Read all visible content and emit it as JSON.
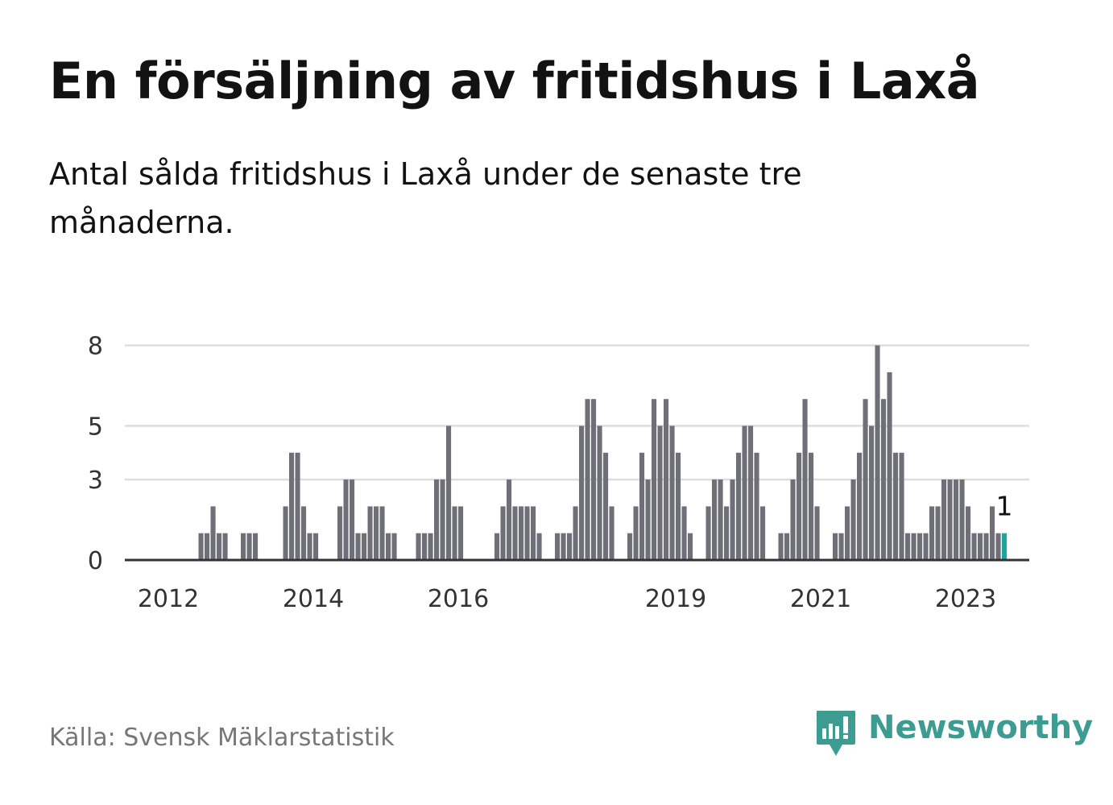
{
  "title": "En försäljning av fritidshus i Laxå",
  "subtitle": "Antal sålda fritidshus i Laxå under de senaste tre månaderna.",
  "source": "Källa: Svensk Mäklarstatistik",
  "brand": {
    "name": "Newsworthy",
    "color": "#3d9c92",
    "icon": "bar-chart-speech-bubble-icon"
  },
  "colors": {
    "bar": "#6f6f77",
    "highlight": "#1fa59b",
    "grid": "#dddddd",
    "axis": "#333333"
  },
  "chart_data": {
    "type": "bar",
    "title": "",
    "xlabel": "",
    "ylabel": "",
    "ylim": [
      0,
      8.5
    ],
    "grid": true,
    "yticks": [
      0,
      3,
      5,
      8
    ],
    "ytick_labels": [
      "0",
      "3",
      "5",
      "8"
    ],
    "xticks": [
      "2012",
      "2014",
      "2016",
      "2019",
      "2021",
      "2023"
    ],
    "x_start": "2011-06",
    "x_end": "2023-04",
    "highlight_label": "1",
    "values": [
      0,
      0,
      0,
      0,
      0,
      0,
      0,
      0,
      0,
      0,
      0,
      0,
      1,
      1,
      2,
      1,
      1,
      0,
      0,
      1,
      1,
      1,
      0,
      0,
      0,
      0,
      2,
      4,
      4,
      2,
      1,
      1,
      0,
      0,
      0,
      2,
      3,
      3,
      1,
      1,
      2,
      2,
      2,
      1,
      1,
      0,
      0,
      0,
      1,
      1,
      1,
      3,
      3,
      5,
      2,
      2,
      0,
      0,
      0,
      0,
      0,
      1,
      2,
      3,
      2,
      2,
      2,
      2,
      1,
      0,
      0,
      1,
      1,
      1,
      2,
      5,
      6,
      6,
      5,
      4,
      2,
      0,
      0,
      1,
      2,
      4,
      3,
      6,
      5,
      6,
      5,
      4,
      2,
      1,
      0,
      0,
      2,
      3,
      3,
      2,
      3,
      4,
      5,
      5,
      4,
      2,
      0,
      0,
      1,
      1,
      3,
      4,
      6,
      4,
      2,
      0,
      0,
      1,
      1,
      2,
      3,
      4,
      6,
      5,
      8,
      6,
      7,
      4,
      4,
      1,
      1,
      1,
      1,
      2,
      2,
      3,
      3,
      3,
      3,
      2,
      1,
      1,
      1,
      2,
      1,
      1
    ]
  }
}
